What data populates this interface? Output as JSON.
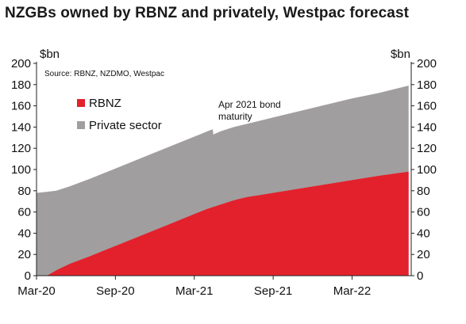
{
  "chart_data": {
    "type": "area",
    "title": "NZGBs owned by RBNZ and privately, Westpac forecast",
    "source": "Source: RBNZ, NZDMO, Westpac",
    "ylabel_left": "$bn",
    "ylabel_right": "$bn",
    "ylim": [
      0,
      200
    ],
    "yticks": [
      0,
      20,
      40,
      60,
      80,
      100,
      120,
      140,
      160,
      180,
      200
    ],
    "xlim": [
      0,
      28.5
    ],
    "xticks": [
      {
        "label": "Mar-20",
        "x": 0
      },
      {
        "label": "Sep-20",
        "x": 6
      },
      {
        "label": "Mar-21",
        "x": 12
      },
      {
        "label": "Sep-21",
        "x": 18
      },
      {
        "label": "Mar-22",
        "x": 24
      }
    ],
    "grid": false,
    "stacked": true,
    "legend_position": "top-left",
    "series": [
      {
        "name": "RBNZ",
        "color": "#e3212c",
        "x": [
          0,
          0.8,
          1.5,
          2.5,
          4,
          6,
          8,
          10,
          12,
          13,
          14,
          15,
          16,
          17,
          18,
          20,
          22,
          24,
          26,
          28.3
        ],
        "values": [
          0,
          0,
          5,
          11,
          18,
          28,
          38,
          48,
          58,
          63,
          67,
          71,
          74,
          76,
          78,
          82,
          86,
          90,
          94,
          98
        ]
      },
      {
        "name": "Private sector",
        "color": "#a19e9f",
        "x": [
          0,
          0.8,
          1.5,
          2.5,
          4,
          6,
          8,
          10,
          12,
          13,
          13.4,
          13.45,
          14,
          15,
          16,
          17,
          18,
          20,
          22,
          24,
          26,
          28.3
        ],
        "total": [
          78,
          79,
          80,
          84,
          91,
          101,
          111,
          121,
          131,
          136,
          138,
          133,
          136,
          140,
          143,
          146,
          149,
          155,
          161,
          167,
          172,
          179
        ]
      }
    ],
    "annotations": [
      {
        "text": "Apr 2021 bond maturity",
        "lines": [
          "Apr 2021 bond",
          "maturity"
        ]
      }
    ]
  }
}
